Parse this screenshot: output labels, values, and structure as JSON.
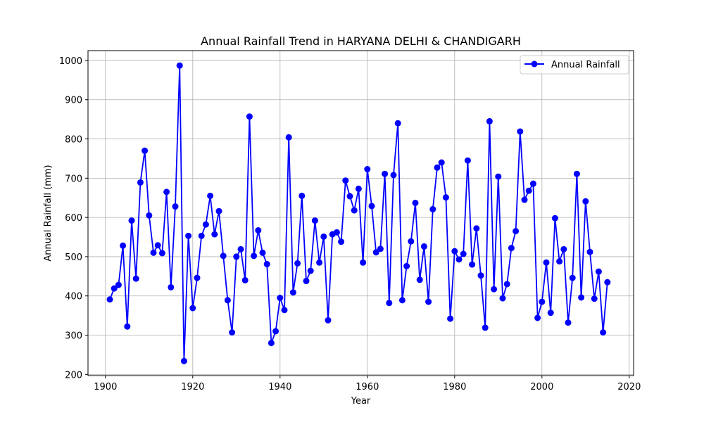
{
  "chart_data": {
    "type": "line",
    "title": "Annual Rainfall Trend in HARYANA DELHI & CHANDIGARH",
    "xlabel": "Year",
    "ylabel": "Annual Rainfall (mm)",
    "xlim": [
      1896,
      2021
    ],
    "ylim": [
      197,
      1025
    ],
    "xticks": [
      1900,
      1920,
      1940,
      1960,
      1980,
      2000,
      2020
    ],
    "yticks": [
      200,
      300,
      400,
      500,
      600,
      700,
      800,
      900,
      1000
    ],
    "grid": true,
    "legend_position": "top-right",
    "series": [
      {
        "name": "Annual Rainfall",
        "color": "#0000ff",
        "marker": "circle",
        "x": [
          1901,
          1902,
          1903,
          1904,
          1905,
          1906,
          1907,
          1908,
          1909,
          1910,
          1911,
          1912,
          1913,
          1914,
          1915,
          1916,
          1917,
          1918,
          1919,
          1920,
          1921,
          1922,
          1923,
          1924,
          1925,
          1926,
          1927,
          1928,
          1929,
          1930,
          1931,
          1932,
          1933,
          1934,
          1935,
          1936,
          1937,
          1938,
          1939,
          1940,
          1941,
          1942,
          1943,
          1944,
          1945,
          1946,
          1947,
          1948,
          1949,
          1950,
          1951,
          1952,
          1953,
          1954,
          1955,
          1956,
          1957,
          1958,
          1959,
          1960,
          1961,
          1962,
          1963,
          1964,
          1965,
          1966,
          1967,
          1968,
          1969,
          1970,
          1971,
          1972,
          1973,
          1974,
          1975,
          1976,
          1977,
          1978,
          1979,
          1980,
          1981,
          1982,
          1983,
          1984,
          1985,
          1986,
          1987,
          1988,
          1989,
          1990,
          1991,
          1992,
          1993,
          1994,
          1995,
          1996,
          1997,
          1998,
          1999,
          2000,
          2001,
          2002,
          2003,
          2004,
          2005,
          2006,
          2007,
          2008,
          2009,
          2010,
          2011,
          2012,
          2013,
          2014,
          2015
        ],
        "y": [
          391,
          419,
          428,
          528,
          322,
          592,
          444,
          689,
          770,
          605,
          510,
          529,
          509,
          665,
          422,
          628,
          987,
          234,
          553,
          369,
          446,
          553,
          582,
          655,
          557,
          616,
          502,
          389,
          307,
          500,
          519,
          440,
          857,
          502,
          567,
          510,
          481,
          280,
          310,
          395,
          364,
          804,
          409,
          483,
          655,
          438,
          464,
          592,
          485,
          551,
          338,
          557,
          562,
          538,
          694,
          654,
          618,
          673,
          485,
          723,
          629,
          511,
          520,
          711,
          382,
          708,
          840,
          389,
          476,
          539,
          637,
          441,
          526,
          385,
          621,
          727,
          740,
          651,
          342,
          514,
          493,
          507,
          745,
          480,
          572,
          452,
          319,
          845,
          417,
          704,
          394,
          430,
          522,
          565,
          819,
          645,
          668,
          686,
          344,
          385,
          485,
          357,
          598,
          488,
          519,
          332,
          446,
          711,
          396,
          641,
          512,
          393,
          462,
          307,
          435
        ]
      }
    ]
  }
}
